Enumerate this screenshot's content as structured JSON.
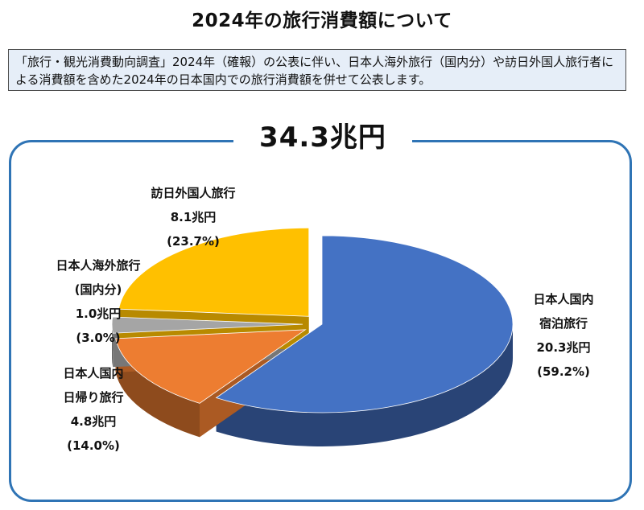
{
  "page": {
    "title": "2024年の旅行消費額について",
    "notice": "「旅行・観光消費動向調査」2024年（確報）の公表に伴い、日本人海外旅行（国内分）や訪日外国人旅行者による消費額を含めた2024年の日本国内での旅行消費額を併せて公表します。"
  },
  "chart_data": {
    "type": "pie",
    "title": "34.3兆円",
    "total": 34.3,
    "unit": "兆円",
    "slices": [
      {
        "label_lines": [
          "日本人国内",
          "宿泊旅行"
        ],
        "value": 20.3,
        "value_text": "20.3兆円",
        "percent": 59.2,
        "percent_text": "(59.2%)",
        "color": "#4472c4",
        "exploded": false
      },
      {
        "label_lines": [
          "日本人国内",
          "日帰り旅行"
        ],
        "value": 4.8,
        "value_text": "4.8兆円",
        "percent": 14.0,
        "percent_text": "(14.0%)",
        "color": "#ed7d31",
        "exploded": true
      },
      {
        "label_lines": [
          "日本人海外旅行",
          "(国内分)"
        ],
        "value": 1.0,
        "value_text": "1.0兆円",
        "percent": 3.0,
        "percent_text": "(3.0%)",
        "color": "#a5a5a5",
        "exploded": true
      },
      {
        "label_lines": [
          "訪日外国人旅行"
        ],
        "value": 8.1,
        "value_text": "8.1兆円",
        "percent": 23.7,
        "percent_text": "(23.7%)",
        "color": "#ffc000",
        "exploded": true
      }
    ]
  }
}
